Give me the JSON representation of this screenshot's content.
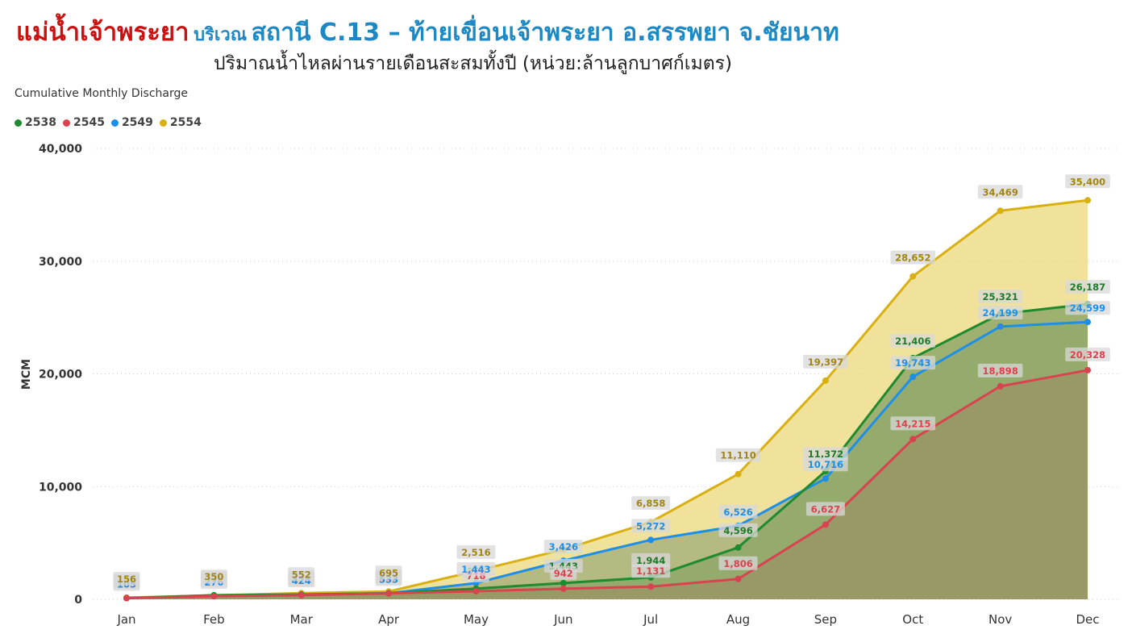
{
  "header": {
    "title_main": "แม่น้ำเจ้าพระยา",
    "title_prefix": "บริเวณ",
    "title_station": "สถานี C.13 – ท้ายเขื่อนเจ้าพระยา อ.สรรพยา จ.ชัยนาท",
    "subtitle": "ปริมาณน้ำไหลผ่านรายเดือนสะสมทั้งปี (หน่วย:ล้านลูกบาศก์เมตร)"
  },
  "chart_label": "Cumulative Monthly Discharge",
  "chart_data": {
    "type": "area",
    "x": [
      "Jan",
      "Feb",
      "Mar",
      "Apr",
      "May",
      "Jun",
      "Jul",
      "Aug",
      "Sep",
      "Oct",
      "Nov",
      "Dec"
    ],
    "ylabel": "MCM",
    "ylim": [
      0,
      40000
    ],
    "yticks": [
      0,
      10000,
      20000,
      30000,
      40000
    ],
    "ytick_labels": [
      "0",
      "10,000",
      "20,000",
      "30,000",
      "40,000"
    ],
    "grid": true,
    "legend_position": "top-left",
    "series": [
      {
        "name": "2538",
        "color": "#1f8a2e",
        "fill": "#8fa86a",
        "label_color": "#1f7a2a",
        "values": [
          105,
          365,
          424,
          533,
          950,
          1443,
          1944,
          4596,
          11372,
          21406,
          25321,
          26187
        ],
        "labels": [
          "105",
          "365",
          "424",
          "533",
          "950",
          "1,443",
          "1,944",
          "4,596",
          "11,372",
          "21,406",
          "25,321",
          "26,187"
        ]
      },
      {
        "name": "2545",
        "color": "#d9434f",
        "fill": "#9a9566",
        "label_color": "#d9434f",
        "values": [
          105,
          276,
          370,
          523,
          718,
          942,
          1131,
          1806,
          6627,
          14215,
          18898,
          20328
        ],
        "labels": [
          "105",
          "276",
          "370",
          "523",
          "718",
          "942",
          "1,131",
          "1,806",
          "6,627",
          "14,215",
          "18,898",
          "20,328"
        ]
      },
      {
        "name": "2549",
        "color": "#1e8fe8",
        "fill": "#aab27e",
        "label_color": "#1e8fe8",
        "values": [
          105,
          276,
          424,
          533,
          1443,
          3426,
          5272,
          6526,
          10716,
          19743,
          24199,
          24599
        ],
        "labels": [
          "105",
          "276",
          "424",
          "533",
          "1,443",
          "3,426",
          "5,272",
          "6,526",
          "10,716",
          "19,743",
          "24,199",
          "24,599"
        ]
      },
      {
        "name": "2554",
        "color": "#d8b011",
        "fill": "#efdd8a",
        "label_color": "#a08514",
        "values": [
          156,
          350,
          552,
          695,
          2516,
          4426,
          6858,
          11110,
          19397,
          28652,
          34469,
          35400
        ],
        "labels": [
          "156",
          "350",
          "552",
          "695",
          "2,516",
          "",
          "6,858",
          "11,110",
          "19,397",
          "28,652",
          "34,469",
          "35,400"
        ]
      }
    ]
  }
}
